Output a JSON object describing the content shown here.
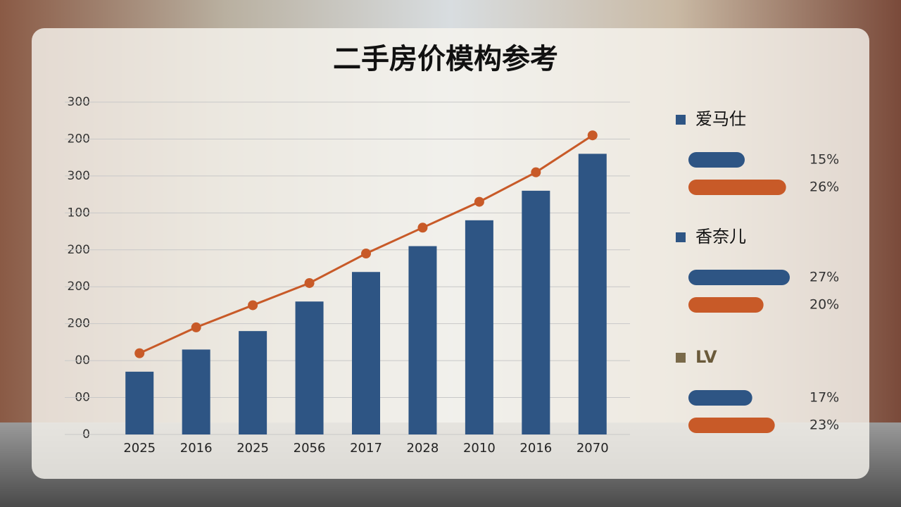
{
  "chart_data": [
    {
      "type": "bar",
      "title": "二手房价模构参考",
      "categories": [
        "2025",
        "2016",
        "2025",
        "2056",
        "2017",
        "2028",
        "2010",
        "2016",
        "2070"
      ],
      "series": [
        {
          "type": "bar",
          "color": "#2e5584",
          "values": [
            1.7,
            2.3,
            2.8,
            3.6,
            4.4,
            5.1,
            5.8,
            6.6,
            7.6
          ]
        },
        {
          "type": "line",
          "color": "#c85a28",
          "values": [
            2.2,
            2.9,
            3.5,
            4.1,
            4.9,
            5.6,
            6.3,
            7.1,
            8.1
          ]
        }
      ],
      "ylim": [
        0,
        9
      ],
      "yticks": [
        {
          "value": 0,
          "label": "0"
        },
        {
          "value": 1,
          "label": "00"
        },
        {
          "value": 2,
          "label": "00"
        },
        {
          "value": 3,
          "label": "200"
        },
        {
          "value": 4,
          "label": "200"
        },
        {
          "value": 5,
          "label": "200"
        },
        {
          "value": 6,
          "label": "100"
        },
        {
          "value": 7,
          "label": "300"
        },
        {
          "value": 8,
          "label": "200"
        },
        {
          "value": 9,
          "label": "300"
        }
      ],
      "grid": true
    },
    {
      "type": "hbar",
      "categories": [
        "爱马仕",
        "香奈儿",
        "LV"
      ],
      "series": [
        {
          "color": "#2e5584",
          "values": [
            15,
            27,
            17
          ],
          "value_labels": [
            "15%",
            "27%",
            "17%"
          ]
        },
        {
          "color": "#c85a28",
          "values": [
            26,
            20,
            23
          ],
          "value_labels": [
            "26%",
            "20%",
            "23%"
          ]
        }
      ],
      "xlim": [
        0,
        30
      ]
    }
  ]
}
